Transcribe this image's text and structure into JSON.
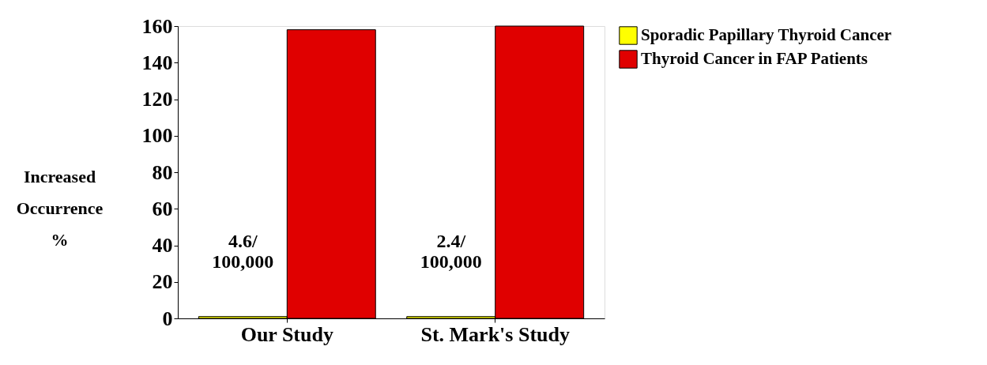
{
  "chart_data": {
    "type": "bar",
    "ylabel": "Increased Occurrence %",
    "categories": [
      "Our Study",
      "St. Mark's Study"
    ],
    "series": [
      {
        "name": "Sporadic Papillary Thyroid Cancer",
        "color": "#ffff00",
        "values": [
          1,
          1
        ],
        "value_labels": [
          "4.6/\n100,000",
          "2.4/\n100,000"
        ]
      },
      {
        "name": "Thyroid Cancer in FAP Patients",
        "color": "#e00000",
        "values": [
          158,
          160
        ]
      }
    ],
    "ylim": [
      0,
      160
    ],
    "yticks": [
      0,
      20,
      40,
      60,
      80,
      100,
      120,
      140,
      160
    ],
    "grid": false,
    "legend": "right"
  }
}
